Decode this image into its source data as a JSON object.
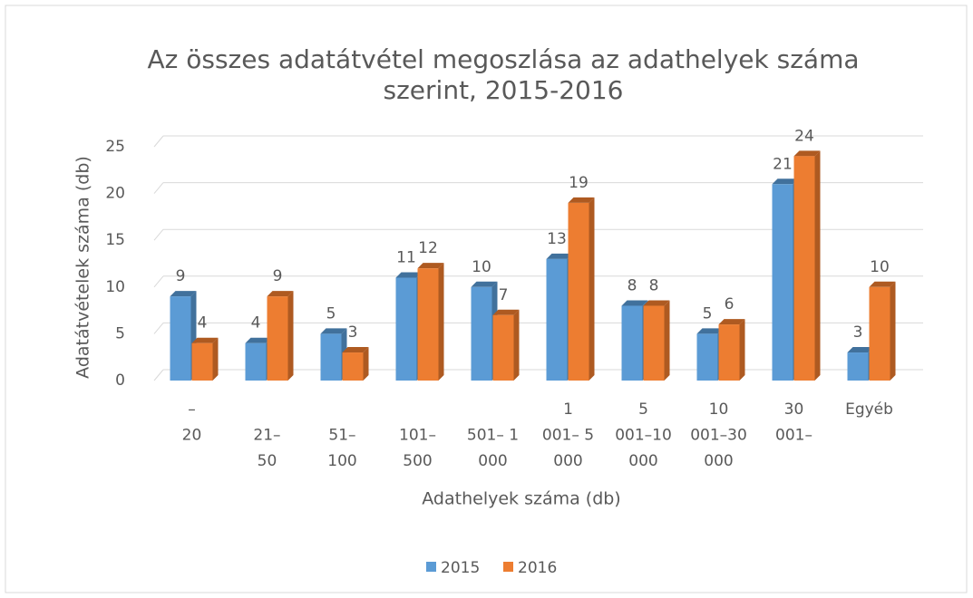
{
  "chart_data": {
    "type": "bar3d",
    "title": "Az összes adatátvétel megoszlása az adathelyek száma\nszerint, 2015-2016",
    "x_label": "Adathelyek száma (db)",
    "y_label": "Adatátvételek száma (db)",
    "categories": [
      "–\n20",
      "21–\n50",
      "51–\n100",
      "101–\n500",
      "501– 1\n000",
      "1\n001– 5\n000",
      "5\n001–10\n000",
      "10\n001–30\n000",
      "30\n001–",
      "Egyéb"
    ],
    "series": [
      {
        "name": "2015",
        "color": "#5b9bd5",
        "side": "#41719c",
        "values": [
          9,
          4,
          5,
          11,
          10,
          13,
          8,
          5,
          21,
          3
        ]
      },
      {
        "name": "2016",
        "color": "#ed7d31",
        "side": "#ae5a21",
        "values": [
          4,
          9,
          3,
          12,
          7,
          19,
          8,
          6,
          24,
          10
        ]
      }
    ],
    "ylim": [
      0,
      25
    ],
    "yticks": [
      0,
      5,
      10,
      15,
      20,
      25
    ],
    "grid": true,
    "legend": "bottom"
  }
}
